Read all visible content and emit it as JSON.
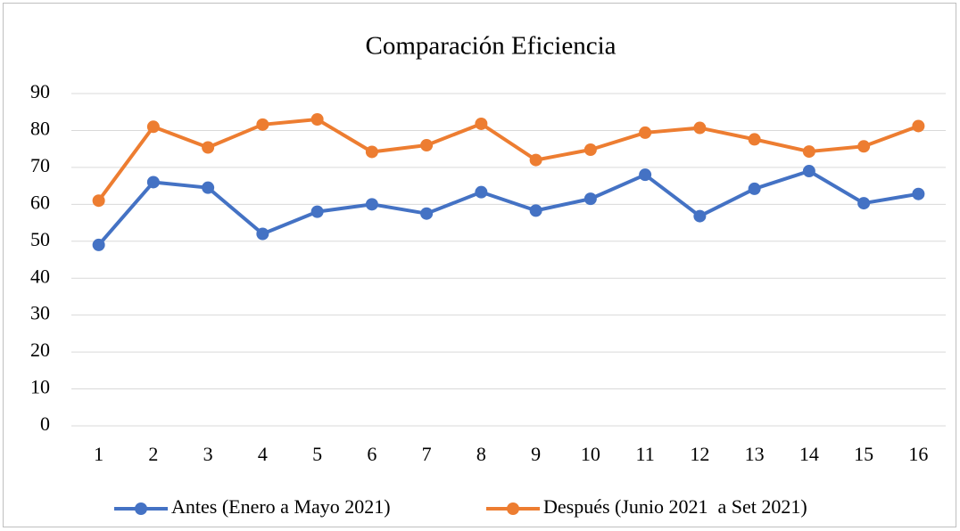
{
  "chart_data": {
    "type": "line",
    "title": "Comparación Eficiencia",
    "categories": [
      "1",
      "2",
      "3",
      "4",
      "5",
      "6",
      "7",
      "8",
      "9",
      "10",
      "11",
      "12",
      "13",
      "14",
      "15",
      "16"
    ],
    "series": [
      {
        "name": "Antes (Enero a Mayo 2021)",
        "color": "#4472c4",
        "values": [
          49,
          66,
          64.5,
          52,
          58,
          60,
          57.5,
          63.3,
          58.3,
          61.5,
          68,
          56.8,
          64.2,
          69,
          60.3,
          62.8
        ]
      },
      {
        "name": "Después (Junio 2021  a Set 2021)",
        "color": "#ed7d31",
        "values": [
          61,
          81,
          75.4,
          81.6,
          83,
          74.2,
          76,
          81.8,
          72,
          74.8,
          79.4,
          80.7,
          77.6,
          74.3,
          75.7,
          81.2
        ]
      }
    ],
    "ylim": [
      0,
      90
    ],
    "yticks": [
      0,
      10,
      20,
      30,
      40,
      50,
      60,
      70,
      80,
      90
    ],
    "grid": true,
    "legend": "bottom"
  }
}
